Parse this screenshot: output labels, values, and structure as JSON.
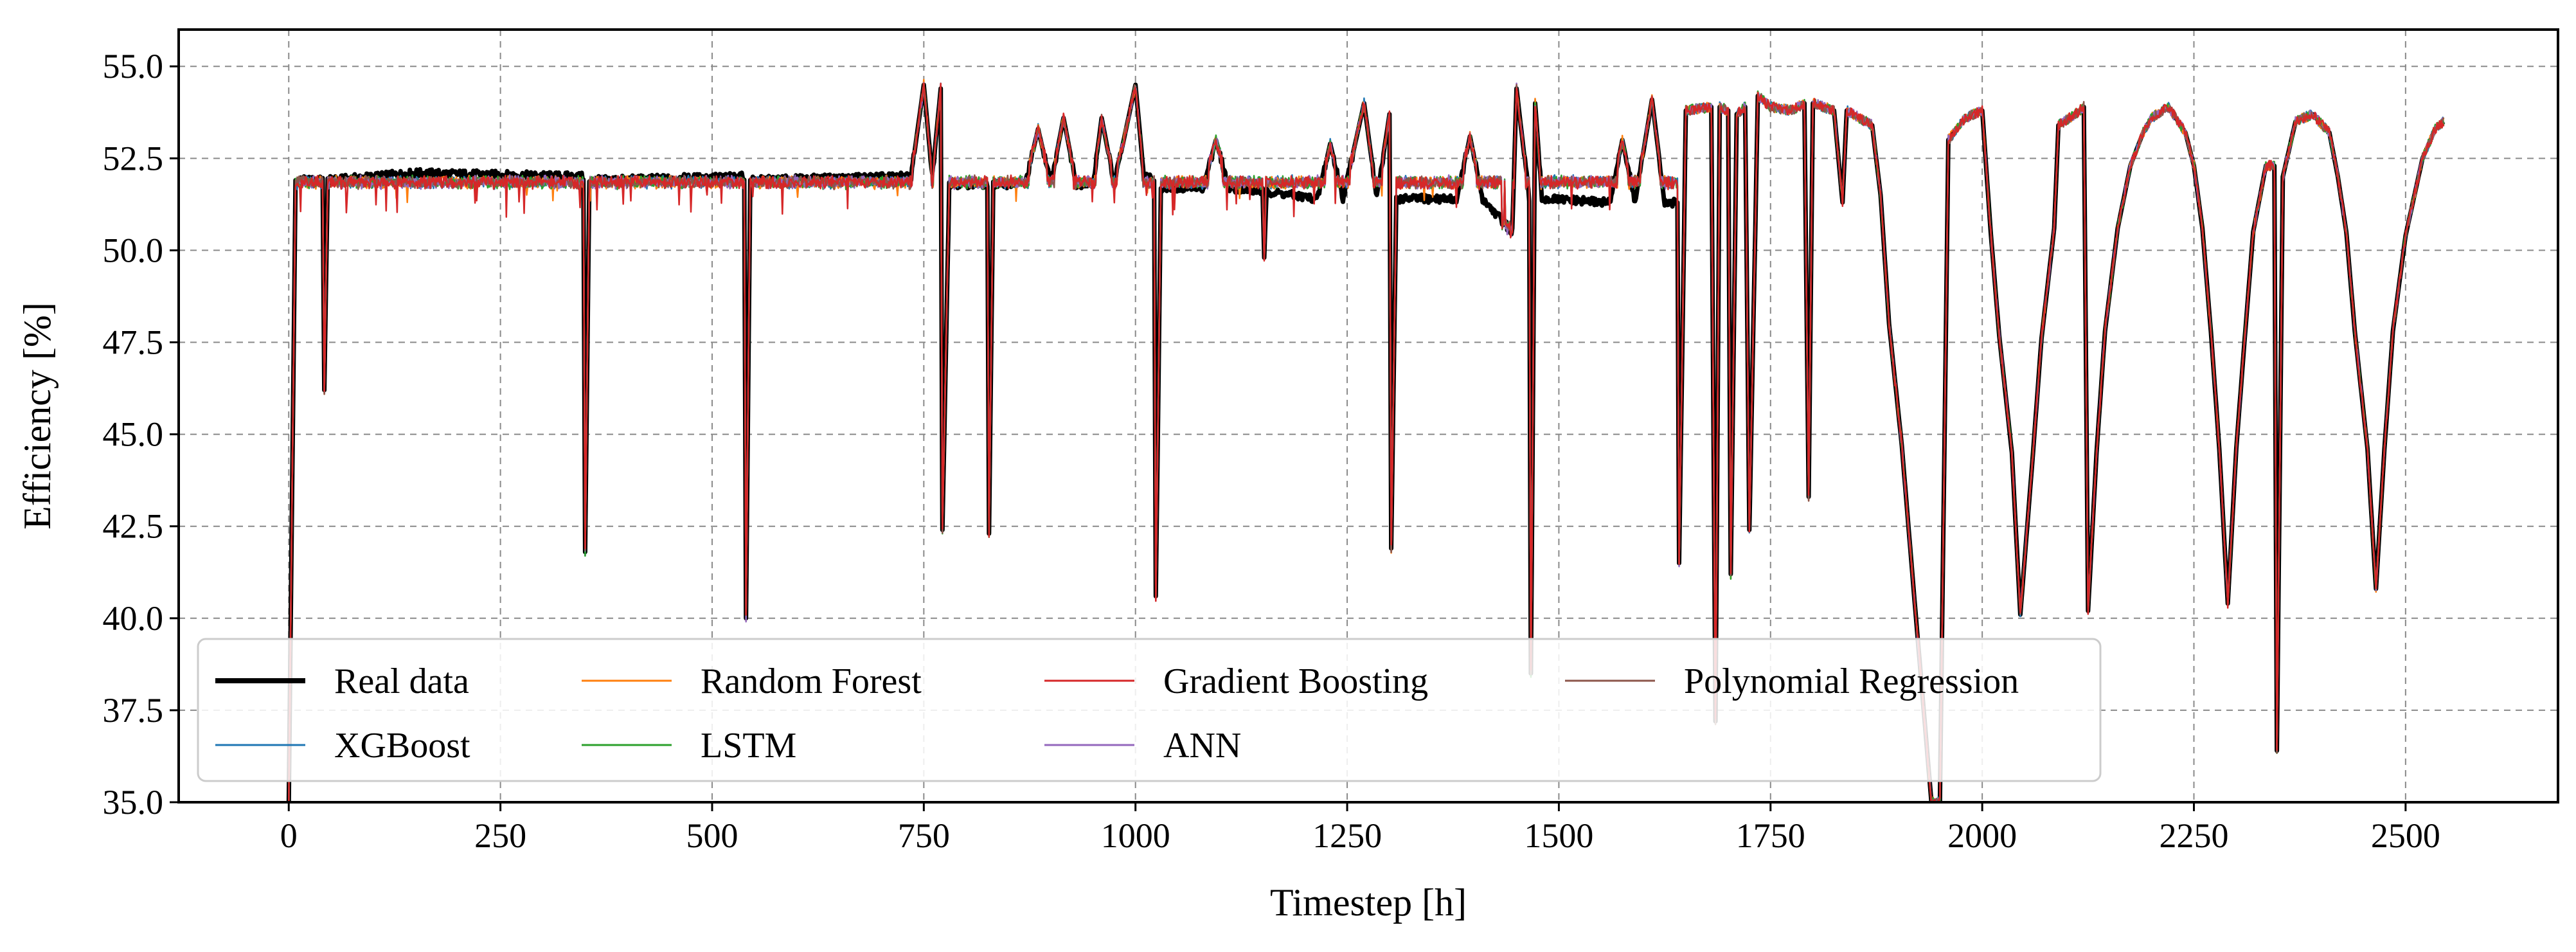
{
  "chart_data": {
    "type": "line",
    "title": "",
    "xlabel": "Timestep [h]",
    "ylabel": "Efficiency [%]",
    "xlim": [
      -130,
      2680
    ],
    "ylim": [
      35.0,
      56.0
    ],
    "xticks": [
      0,
      250,
      500,
      750,
      1000,
      1250,
      1500,
      1750,
      2000,
      2250,
      2500
    ],
    "xtick_labels": [
      "0",
      "250",
      "500",
      "750",
      "1000",
      "1250",
      "1500",
      "1750",
      "2000",
      "2250",
      "2500"
    ],
    "yticks": [
      35.0,
      37.5,
      40.0,
      42.5,
      45.0,
      47.5,
      50.0,
      52.5,
      55.0
    ],
    "ytick_labels": [
      "35.0",
      "37.5",
      "40.0",
      "42.5",
      "45.0",
      "47.5",
      "50.0",
      "52.5",
      "55.0"
    ],
    "grid": true,
    "legend_position": "bottom-left",
    "legend_columns": 4,
    "series": [
      {
        "name": "Real data",
        "color": "#000000",
        "line_width": 7
      },
      {
        "name": "XGBoost",
        "color": "#1f77b4",
        "line_width": 2.5
      },
      {
        "name": "Random Forest",
        "color": "#ff7f0e",
        "line_width": 2.5
      },
      {
        "name": "LSTM",
        "color": "#2ca02c",
        "line_width": 2.5
      },
      {
        "name": "Gradient Boosting",
        "color": "#d62728",
        "line_width": 2.5
      },
      {
        "name": "ANN",
        "color": "#9467bd",
        "line_width": 2.5
      },
      {
        "name": "Polynomial Regression",
        "color": "#8c564b",
        "line_width": 2.5
      }
    ],
    "real_data_profile": [
      [
        0,
        35.0
      ],
      [
        8,
        51.9
      ],
      [
        40,
        51.9
      ],
      [
        42,
        46.2
      ],
      [
        46,
        51.9
      ],
      [
        150,
        52.1
      ],
      [
        348,
        52.0
      ],
      [
        350,
        41.8
      ],
      [
        355,
        51.9
      ],
      [
        538,
        52.0
      ],
      [
        540,
        40.0
      ],
      [
        545,
        51.9
      ],
      [
        720,
        52.0
      ],
      [
        735,
        52.0
      ],
      [
        750,
        54.5
      ],
      [
        760,
        52.0
      ],
      [
        770,
        54.4
      ],
      [
        772,
        42.4
      ],
      [
        780,
        51.8
      ],
      [
        825,
        51.8
      ],
      [
        827,
        42.3
      ],
      [
        832,
        51.8
      ],
      [
        870,
        51.8
      ],
      [
        885,
        53.3
      ],
      [
        900,
        51.8
      ],
      [
        915,
        53.6
      ],
      [
        930,
        51.8
      ],
      [
        950,
        51.8
      ],
      [
        960,
        53.6
      ],
      [
        975,
        51.8
      ],
      [
        1000,
        54.5
      ],
      [
        1010,
        52.0
      ],
      [
        1022,
        52.0
      ],
      [
        1024,
        40.6
      ],
      [
        1030,
        51.7
      ],
      [
        1080,
        51.7
      ],
      [
        1095,
        53.0
      ],
      [
        1110,
        51.7
      ],
      [
        1150,
        51.6
      ],
      [
        1152,
        49.8
      ],
      [
        1155,
        51.6
      ],
      [
        1215,
        51.4
      ],
      [
        1230,
        52.9
      ],
      [
        1245,
        51.4
      ],
      [
        1270,
        54.0
      ],
      [
        1285,
        51.4
      ],
      [
        1300,
        53.7
      ],
      [
        1302,
        41.9
      ],
      [
        1308,
        51.4
      ],
      [
        1380,
        51.4
      ],
      [
        1395,
        53.1
      ],
      [
        1410,
        51.4
      ],
      [
        1445,
        50.5
      ],
      [
        1450,
        54.4
      ],
      [
        1465,
        51.4
      ],
      [
        1467,
        38.5
      ],
      [
        1472,
        54.0
      ],
      [
        1480,
        51.4
      ],
      [
        1560,
        51.3
      ],
      [
        1575,
        53.0
      ],
      [
        1590,
        51.3
      ],
      [
        1610,
        54.1
      ],
      [
        1625,
        51.3
      ],
      [
        1640,
        51.3
      ],
      [
        1642,
        41.5
      ],
      [
        1650,
        53.8
      ],
      [
        1680,
        53.9
      ],
      [
        1685,
        37.2
      ],
      [
        1690,
        53.9
      ],
      [
        1700,
        53.8
      ],
      [
        1703,
        41.2
      ],
      [
        1710,
        53.7
      ],
      [
        1720,
        53.9
      ],
      [
        1725,
        42.4
      ],
      [
        1735,
        54.2
      ],
      [
        1750,
        53.9
      ],
      [
        1775,
        53.8
      ],
      [
        1790,
        54.0
      ],
      [
        1795,
        43.3
      ],
      [
        1800,
        54.0
      ],
      [
        1825,
        53.8
      ],
      [
        1835,
        51.3
      ],
      [
        1840,
        53.8
      ],
      [
        1870,
        53.4
      ],
      [
        1880,
        51.5
      ],
      [
        1890,
        48.0
      ],
      [
        1905,
        44.7
      ],
      [
        1920,
        40.5
      ],
      [
        1940,
        35.0
      ],
      [
        1950,
        35.0
      ],
      [
        1960,
        53.0
      ],
      [
        1980,
        53.6
      ],
      [
        2000,
        53.8
      ],
      [
        2010,
        50.5
      ],
      [
        2020,
        47.7
      ],
      [
        2035,
        44.5
      ],
      [
        2045,
        40.1
      ],
      [
        2060,
        44.5
      ],
      [
        2070,
        47.6
      ],
      [
        2085,
        50.6
      ],
      [
        2090,
        53.4
      ],
      [
        2110,
        53.7
      ],
      [
        2120,
        53.9
      ],
      [
        2125,
        40.2
      ],
      [
        2135,
        44.5
      ],
      [
        2145,
        47.8
      ],
      [
        2160,
        50.6
      ],
      [
        2175,
        52.3
      ],
      [
        2190,
        53.2
      ],
      [
        2200,
        53.6
      ],
      [
        2220,
        53.9
      ],
      [
        2240,
        53.2
      ],
      [
        2250,
        52.3
      ],
      [
        2260,
        50.6
      ],
      [
        2270,
        47.8
      ],
      [
        2280,
        44.6
      ],
      [
        2290,
        40.4
      ],
      [
        2300,
        44.6
      ],
      [
        2310,
        47.6
      ],
      [
        2320,
        50.5
      ],
      [
        2335,
        52.3
      ],
      [
        2345,
        52.3
      ],
      [
        2348,
        36.4
      ],
      [
        2355,
        52.0
      ],
      [
        2370,
        53.5
      ],
      [
        2390,
        53.7
      ],
      [
        2410,
        53.2
      ],
      [
        2420,
        52.0
      ],
      [
        2430,
        50.5
      ],
      [
        2440,
        47.8
      ],
      [
        2455,
        44.6
      ],
      [
        2465,
        40.8
      ],
      [
        2475,
        44.6
      ],
      [
        2485,
        47.8
      ],
      [
        2500,
        50.4
      ],
      [
        2520,
        52.5
      ],
      [
        2535,
        53.3
      ],
      [
        2545,
        53.5
      ]
    ]
  }
}
